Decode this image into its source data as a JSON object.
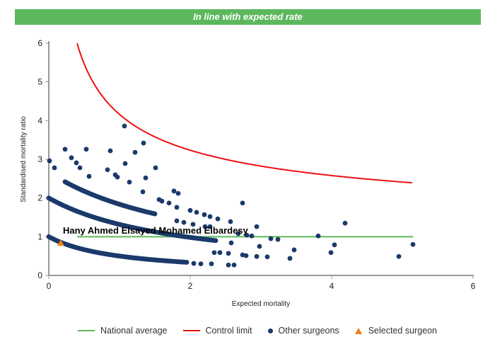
{
  "banner": "In line with expected rate",
  "colors": {
    "banner": "#5cb85c",
    "national": "#5cb85c",
    "control": "#ee1111",
    "other": "#1b3a6b",
    "selected": "#f07f16"
  },
  "chart_data": {
    "type": "scatter",
    "title": "",
    "xlabel": "Expected mortality",
    "ylabel": "Standardised mortality ratio",
    "xlim": [
      0,
      6
    ],
    "ylim": [
      0,
      6
    ],
    "xticks": [
      "0",
      "2",
      "4",
      "6"
    ],
    "xtick_values": [
      0,
      2,
      4,
      6
    ],
    "yticks": [
      "0",
      "1",
      "2",
      "3",
      "4",
      "5",
      "6"
    ],
    "ytick_values": [
      0,
      1,
      2,
      3,
      4,
      5,
      6
    ],
    "legend": {
      "position": "bottom",
      "entries": [
        "National average",
        "Control limit",
        "Other surgeons",
        "Selected surgeon"
      ]
    },
    "national_average": {
      "y": 1,
      "x_range": [
        0.4,
        5.15
      ]
    },
    "control_limit": {
      "formula": "1 + 3.16/sqrt(x)",
      "x": [
        0.4,
        0.5,
        0.6,
        0.8,
        1,
        1.25,
        1.5,
        2,
        2.5,
        3,
        3.5,
        4,
        4.5,
        5.15
      ],
      "y": [
        6.0,
        5.47,
        5.08,
        4.53,
        4.16,
        3.83,
        3.58,
        3.23,
        3.0,
        2.82,
        2.69,
        2.58,
        2.49,
        2.39
      ]
    },
    "other_surgeon_bands": [
      {
        "a": 1.0,
        "b": 1.0,
        "x_from": 0,
        "x_to": 1.95,
        "count": 120
      },
      {
        "a": 3.86,
        "b": 1.93,
        "x_from": 0,
        "x_to": 2.36,
        "count": 140
      },
      {
        "a": 5.9,
        "b": 2.21,
        "x_from": 0.23,
        "x_to": 1.5,
        "count": 80
      }
    ],
    "other_surgeons": [
      [
        0.01,
        2.96
      ],
      [
        0.08,
        2.78
      ],
      [
        0.23,
        3.26
      ],
      [
        0.32,
        3.04
      ],
      [
        0.39,
        2.91
      ],
      [
        0.44,
        2.78
      ],
      [
        0.53,
        3.26
      ],
      [
        0.57,
        2.56
      ],
      [
        0.83,
        2.73
      ],
      [
        0.87,
        3.22
      ],
      [
        0.94,
        2.6
      ],
      [
        0.97,
        2.54
      ],
      [
        1.07,
        3.86
      ],
      [
        1.08,
        2.89
      ],
      [
        1.14,
        2.41
      ],
      [
        1.22,
        3.18
      ],
      [
        1.34,
        3.42
      ],
      [
        1.37,
        2.52
      ],
      [
        1.33,
        2.16
      ],
      [
        1.51,
        2.78
      ],
      [
        1.56,
        1.96
      ],
      [
        1.6,
        1.92
      ],
      [
        1.7,
        1.87
      ],
      [
        1.77,
        2.18
      ],
      [
        1.83,
        2.12
      ],
      [
        1.81,
        1.76
      ],
      [
        2.0,
        1.68
      ],
      [
        2.09,
        1.63
      ],
      [
        2.2,
        1.57
      ],
      [
        2.28,
        1.52
      ],
      [
        2.39,
        1.46
      ],
      [
        2.57,
        1.39
      ],
      [
        1.81,
        1.41
      ],
      [
        1.91,
        1.37
      ],
      [
        2.04,
        1.32
      ],
      [
        2.21,
        1.26
      ],
      [
        2.28,
        1.26
      ],
      [
        2.74,
        1.87
      ],
      [
        2.94,
        1.26
      ],
      [
        2.68,
        1.08
      ],
      [
        2.8,
        1.04
      ],
      [
        2.87,
        1.02
      ],
      [
        3.14,
        0.95
      ],
      [
        3.24,
        0.93
      ],
      [
        3.81,
        1.02
      ],
      [
        4.19,
        1.35
      ],
      [
        2.58,
        0.84
      ],
      [
        2.98,
        0.75
      ],
      [
        3.47,
        0.66
      ],
      [
        4.04,
        0.79
      ],
      [
        5.15,
        0.8
      ],
      [
        2.34,
        0.59
      ],
      [
        2.42,
        0.59
      ],
      [
        2.54,
        0.57
      ],
      [
        2.74,
        0.53
      ],
      [
        2.79,
        0.51
      ],
      [
        2.94,
        0.49
      ],
      [
        3.09,
        0.48
      ],
      [
        3.41,
        0.44
      ],
      [
        3.99,
        0.59
      ],
      [
        4.95,
        0.49
      ],
      [
        2.54,
        0.27
      ],
      [
        2.62,
        0.27
      ],
      [
        2.05,
        0.31
      ],
      [
        2.15,
        0.3
      ],
      [
        2.3,
        0.3
      ]
    ],
    "selected_surgeon": {
      "name": "Hany Ahmed Elsayed Mohamed Elbardesy",
      "x": 0.17,
      "y": 0.84
    }
  }
}
